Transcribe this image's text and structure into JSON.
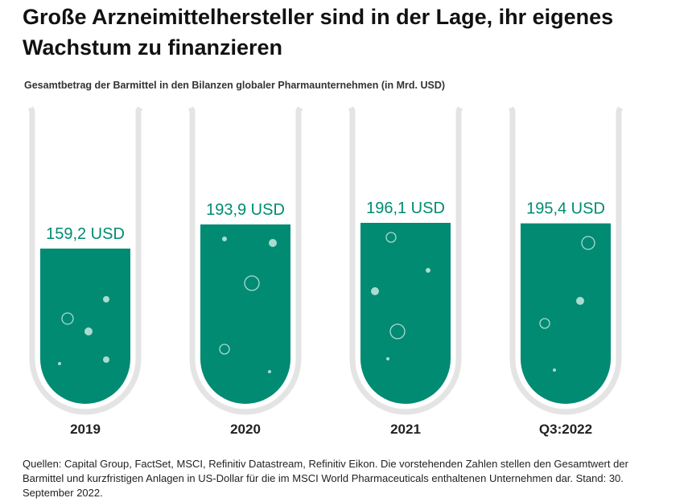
{
  "header": {
    "title": "Große Arzneimittelhersteller sind in der Lage, ihr eigenes Wachstum zu finanzieren",
    "subtitle": "Gesamtbetrag der Barmittel in den Bilanzen globaler Pharmaunternehmen (in Mrd. USD)"
  },
  "chart_data": {
    "type": "bar",
    "style": "test-tube fill",
    "categories": [
      "2019",
      "2020",
      "2021",
      "Q3:2022"
    ],
    "values": [
      159.2,
      193.9,
      196.1,
      195.4
    ],
    "value_labels": [
      "159,2 USD",
      "193,9 USD",
      "196,1 USD",
      "195,4 USD"
    ],
    "title": "Gesamtbetrag der Barmittel in den Bilanzen globaler Pharmaunternehmen (in Mrd. USD)",
    "xlabel": "",
    "ylabel": "",
    "ylim": [
      0,
      240
    ],
    "grid": false,
    "colors": {
      "fill": "#008B72",
      "tube": "#E4E4E4",
      "bubble": "#A9DCCF"
    }
  },
  "footer": {
    "source": "Quellen: Capital Group, FactSet, MSCI, Refinitiv Datastream, Refinitiv Eikon. Die vorstehenden Zahlen stellen den Gesamtwert der Barmittel und kurzfristigen Anlagen in US-Dollar für die im MSCI World Pharmaceuticals enthaltenen Unternehmen dar. Stand: 30. September 2022."
  }
}
